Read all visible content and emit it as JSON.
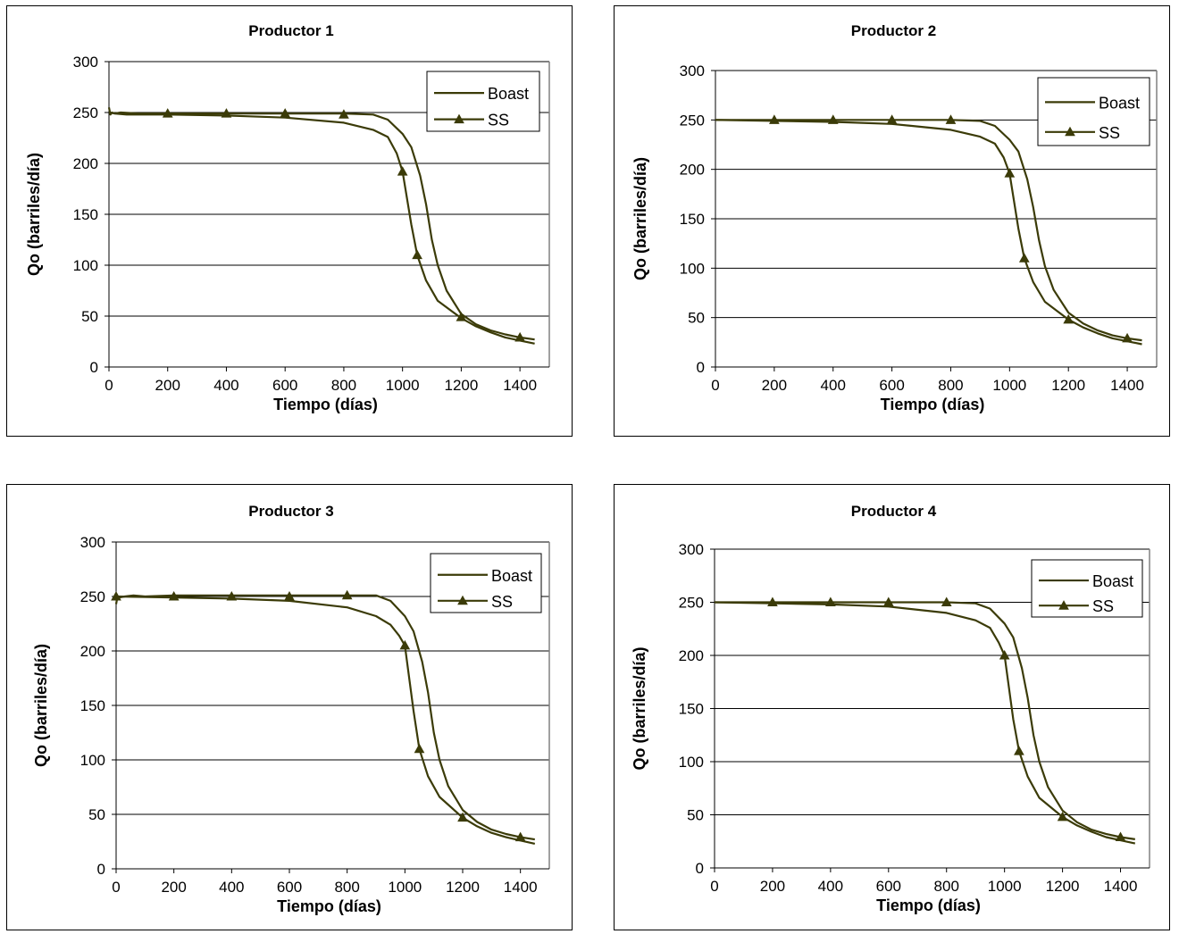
{
  "series_color": "#3b3b08",
  "chart_data": [
    {
      "type": "line",
      "title": "Productor 1",
      "xlabel": "Tiempo (días)",
      "ylabel": "Qo (barriles/día)",
      "xlim": [
        0,
        1500
      ],
      "ylim": [
        0,
        300
      ],
      "xticks": [
        0,
        200,
        400,
        600,
        800,
        1000,
        1200,
        1400
      ],
      "yticks": [
        0,
        50,
        100,
        150,
        200,
        250,
        300
      ],
      "grid": "horizontal",
      "legend": "top-right",
      "series": [
        {
          "name": "Boast",
          "marker": "none",
          "x": [
            0,
            5,
            10,
            20,
            40,
            100,
            200,
            300,
            400,
            500,
            600,
            700,
            800,
            900,
            950,
            1000,
            1030,
            1060,
            1080,
            1100,
            1120,
            1150,
            1200,
            1250,
            1300,
            1350,
            1400,
            1450
          ],
          "y": [
            255,
            248,
            250,
            249,
            250,
            249,
            249,
            249,
            249,
            249,
            249,
            249,
            249,
            248,
            243,
            229,
            216,
            188,
            160,
            125,
            100,
            75,
            52,
            42,
            36,
            32,
            29,
            27
          ]
        },
        {
          "name": "SS",
          "marker": "triangle",
          "x": [
            0,
            20,
            60,
            200,
            400,
            600,
            800,
            900,
            950,
            980,
            1000,
            1030,
            1050,
            1080,
            1120,
            1200,
            1250,
            1300,
            1350,
            1400,
            1450
          ],
          "y": [
            250,
            249,
            248,
            248,
            247,
            245,
            240,
            233,
            226,
            210,
            192,
            140,
            110,
            85,
            65,
            48,
            40,
            34,
            29,
            26,
            23
          ]
        }
      ],
      "markers": {
        "SS": [
          [
            200,
            249
          ],
          [
            400,
            249
          ],
          [
            600,
            249
          ],
          [
            800,
            248
          ],
          [
            1000,
            192
          ],
          [
            1050,
            110
          ],
          [
            1200,
            49
          ],
          [
            1400,
            29
          ]
        ]
      }
    },
    {
      "type": "line",
      "title": "Productor 2",
      "xlabel": "Tiempo (días)",
      "ylabel": "Qo (barriles/día)",
      "xlim": [
        0,
        1500
      ],
      "ylim": [
        0,
        300
      ],
      "xticks": [
        0,
        200,
        400,
        600,
        800,
        1000,
        1200,
        1400
      ],
      "yticks": [
        0,
        50,
        100,
        150,
        200,
        250,
        300
      ],
      "grid": "horizontal",
      "legend": "top-right",
      "series": [
        {
          "name": "Boast",
          "marker": "none",
          "x": [
            0,
            100,
            200,
            300,
            400,
            500,
            600,
            700,
            800,
            900,
            950,
            1000,
            1030,
            1060,
            1080,
            1100,
            1120,
            1150,
            1200,
            1250,
            1300,
            1350,
            1400,
            1450
          ],
          "y": [
            250,
            250,
            250,
            250,
            250,
            250,
            250,
            250,
            250,
            249,
            244,
            230,
            218,
            190,
            162,
            128,
            102,
            78,
            55,
            44,
            37,
            32,
            29,
            27
          ]
        },
        {
          "name": "SS",
          "marker": "triangle",
          "x": [
            0,
            200,
            400,
            600,
            800,
            900,
            950,
            980,
            1000,
            1030,
            1050,
            1080,
            1120,
            1200,
            1250,
            1300,
            1350,
            1400,
            1450
          ],
          "y": [
            250,
            249,
            248,
            246,
            240,
            233,
            226,
            212,
            196,
            140,
            110,
            86,
            66,
            48,
            40,
            34,
            29,
            26,
            23
          ]
        }
      ],
      "markers": {
        "SS": [
          [
            200,
            250
          ],
          [
            400,
            250
          ],
          [
            600,
            250
          ],
          [
            800,
            250
          ],
          [
            1000,
            196
          ],
          [
            1050,
            110
          ],
          [
            1200,
            48
          ],
          [
            1400,
            29
          ]
        ]
      }
    },
    {
      "type": "line",
      "title": "Productor 3",
      "xlabel": "Tiempo (días)",
      "ylabel": "Qo (barriles/día)",
      "xlim": [
        0,
        1500
      ],
      "ylim": [
        0,
        300
      ],
      "xticks": [
        0,
        200,
        400,
        600,
        800,
        1000,
        1200,
        1400
      ],
      "yticks": [
        0,
        50,
        100,
        150,
        200,
        250,
        300
      ],
      "grid": "horizontal",
      "legend": "top-right",
      "series": [
        {
          "name": "Boast",
          "marker": "none",
          "x": [
            0,
            5,
            10,
            30,
            60,
            100,
            200,
            300,
            400,
            500,
            600,
            700,
            800,
            900,
            950,
            1000,
            1030,
            1060,
            1080,
            1100,
            1120,
            1150,
            1200,
            1250,
            1300,
            1350,
            1400,
            1450
          ],
          "y": [
            243,
            250,
            249,
            250,
            251,
            250,
            251,
            251,
            251,
            251,
            251,
            251,
            251,
            251,
            246,
            232,
            218,
            190,
            162,
            125,
            100,
            76,
            54,
            43,
            36,
            32,
            29,
            27
          ]
        },
        {
          "name": "SS",
          "marker": "triangle",
          "x": [
            0,
            200,
            400,
            600,
            800,
            900,
            950,
            980,
            1000,
            1030,
            1050,
            1080,
            1120,
            1200,
            1250,
            1300,
            1350,
            1400,
            1450
          ],
          "y": [
            250,
            249,
            248,
            246,
            240,
            232,
            224,
            214,
            205,
            145,
            110,
            85,
            66,
            47,
            39,
            33,
            29,
            26,
            23
          ]
        }
      ],
      "markers": {
        "SS": [
          [
            0,
            250
          ],
          [
            200,
            250
          ],
          [
            400,
            250
          ],
          [
            600,
            250
          ],
          [
            800,
            251
          ],
          [
            1000,
            205
          ],
          [
            1050,
            110
          ],
          [
            1200,
            47
          ],
          [
            1400,
            29
          ]
        ]
      }
    },
    {
      "type": "line",
      "title": "Productor 4",
      "xlabel": "Tiempo (días)",
      "ylabel": "Qo (barriles/día)",
      "xlim": [
        0,
        1500
      ],
      "ylim": [
        0,
        300
      ],
      "xticks": [
        0,
        200,
        400,
        600,
        800,
        1000,
        1200,
        1400
      ],
      "yticks": [
        0,
        50,
        100,
        150,
        200,
        250,
        300
      ],
      "grid": "horizontal",
      "legend": "top-right",
      "series": [
        {
          "name": "Boast",
          "marker": "none",
          "x": [
            0,
            100,
            200,
            300,
            400,
            500,
            600,
            700,
            800,
            900,
            950,
            1000,
            1030,
            1060,
            1080,
            1100,
            1120,
            1150,
            1200,
            1250,
            1300,
            1350,
            1400,
            1450
          ],
          "y": [
            250,
            250,
            250,
            250,
            250,
            250,
            250,
            250,
            250,
            249,
            244,
            230,
            217,
            188,
            160,
            125,
            100,
            76,
            54,
            43,
            36,
            32,
            29,
            27
          ]
        },
        {
          "name": "SS",
          "marker": "triangle",
          "x": [
            0,
            200,
            400,
            600,
            800,
            900,
            950,
            980,
            1000,
            1030,
            1050,
            1080,
            1120,
            1200,
            1250,
            1300,
            1350,
            1400,
            1450
          ],
          "y": [
            250,
            249,
            248,
            246,
            240,
            233,
            226,
            212,
            200,
            140,
            110,
            86,
            66,
            48,
            40,
            34,
            29,
            26,
            23
          ]
        }
      ],
      "markers": {
        "SS": [
          [
            200,
            250
          ],
          [
            400,
            250
          ],
          [
            600,
            250
          ],
          [
            800,
            250
          ],
          [
            1000,
            200
          ],
          [
            1050,
            110
          ],
          [
            1200,
            48
          ],
          [
            1400,
            29
          ]
        ]
      }
    }
  ]
}
